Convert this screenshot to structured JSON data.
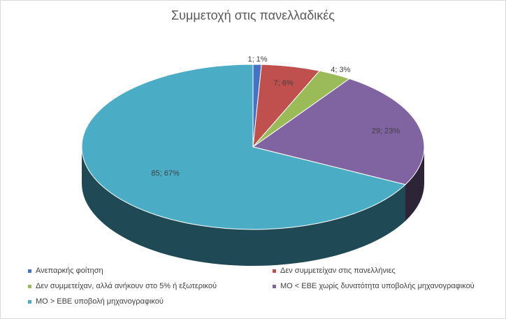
{
  "chart_data": {
    "type": "pie",
    "title": "Συμμετοχή στις πανελλαδικές",
    "categories": [
      "Ανεπαρκής φοίτηση",
      "Δεν συμμετείχαν στις πανελλήνιες",
      "Δεν συμμετείχαν, αλλά ανήκουν στο 5% ή εξωτερικού",
      "ΜΟ < ΕΒΕ χωρίς δυνατότητα υποβολής μηχανογραφικού",
      "ΜΟ > ΕΒΕ υποβολή μηχανογραφικού"
    ],
    "values": [
      1,
      7,
      4,
      29,
      85
    ],
    "data_labels": [
      "1; 1%",
      "7; 6%",
      "4; 3%",
      "29; 23%",
      "85; 67%"
    ],
    "colors": [
      "#4472c4",
      "#c0504d",
      "#9bbb59",
      "#8064a2",
      "#4bacc6"
    ],
    "side_colors": [
      "#2c4a80",
      "#7a2f2d",
      "#6b8a37",
      "#2d2438",
      "#1f4a55"
    ],
    "style": "3d",
    "legend": "bottom"
  }
}
